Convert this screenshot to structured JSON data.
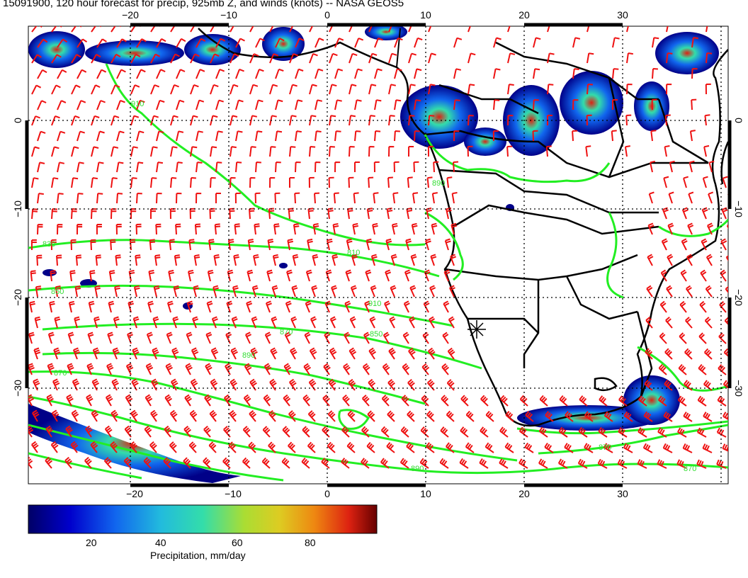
{
  "title": "15091900, 120 hour forecast for precip, 925mb Z, and winds (knots) -- NASA GEOS5",
  "map": {
    "lon_ticks_top": [
      "−20",
      "−10",
      "0",
      "10",
      "20",
      "30"
    ],
    "lon_ticks_bottom": [
      "−20",
      "−10",
      "0",
      "10",
      "20",
      "30"
    ],
    "lat_ticks_left": [
      "0",
      "−10",
      "−20",
      "−30"
    ],
    "lat_ticks_right": [
      "0",
      "−10",
      "−20",
      "−30"
    ],
    "contour_labels": [
      "810",
      "830",
      "850",
      "870",
      "890",
      "910",
      "850",
      "870",
      "890",
      "910",
      "870",
      "890",
      "870",
      "830",
      "850",
      "870",
      "890",
      "910"
    ],
    "colors": {
      "contour": "#22ee22",
      "wind_barb": "#ee1111",
      "coastline": "#000000",
      "grid": "#000000"
    }
  },
  "colorbar": {
    "title": "Precipitation, mm/day",
    "ticks": [
      "20",
      "40",
      "60",
      "80"
    ],
    "colors": [
      "#000066",
      "#0000cc",
      "#1166ee",
      "#22bbdd",
      "#33ddaa",
      "#aadd33",
      "#ddcc22",
      "#ee8811",
      "#dd2211",
      "#660000"
    ]
  }
}
